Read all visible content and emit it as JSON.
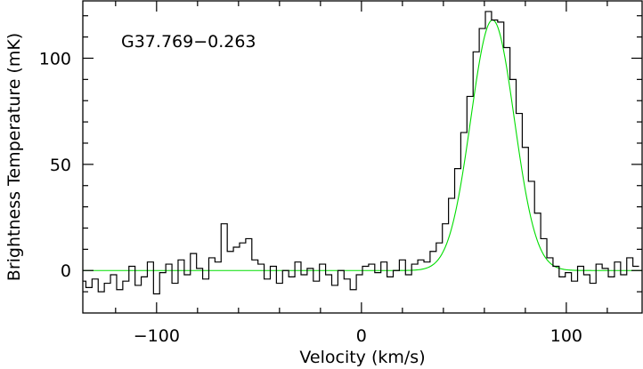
{
  "chart_data": {
    "type": "line",
    "title": "",
    "annotation": "G37.769−0.263",
    "xlabel": "Velocity (km/s)",
    "ylabel": "Brightness Temperature (mK)",
    "xlim": [
      -136,
      137
    ],
    "ylim": [
      -20,
      127
    ],
    "x_ticks": [
      -100,
      0,
      100
    ],
    "x_tick_labels": [
      "−100",
      "0",
      "100"
    ],
    "y_ticks": [
      0,
      50,
      100
    ],
    "y_tick_labels": [
      "0",
      "50",
      "100"
    ],
    "grid": false,
    "colors": {
      "spectrum": "#000000",
      "fit": "#00dd00",
      "axes": "#000000"
    },
    "series": [
      {
        "style": "step",
        "color": "#000000",
        "x": [
          -136,
          -133,
          -130,
          -127,
          -124,
          -121,
          -118,
          -115,
          -112,
          -109,
          -106,
          -103,
          -100,
          -97,
          -94,
          -91,
          -88,
          -85,
          -82,
          -79,
          -76,
          -73,
          -70,
          -67,
          -64,
          -61,
          -58,
          -55,
          -52,
          -49,
          -46,
          -43,
          -40,
          -37,
          -34,
          -31,
          -28,
          -25,
          -22,
          -19,
          -16,
          -13,
          -10,
          -7,
          -4,
          -1,
          2,
          5,
          8,
          11,
          14,
          17,
          20,
          23,
          26,
          29,
          32,
          35,
          38,
          41,
          44,
          47,
          50,
          53,
          56,
          59,
          62,
          65,
          68,
          71,
          74,
          77,
          80,
          83,
          86,
          89,
          92,
          95,
          98,
          101,
          104,
          107,
          110,
          113,
          116,
          119,
          122,
          125,
          128,
          131,
          134
        ],
        "values": [
          -5,
          -8,
          -4,
          -10,
          -6,
          -2,
          -9,
          -5,
          2,
          -7,
          -3,
          4,
          -11,
          -1,
          3,
          -6,
          5,
          -2,
          8,
          1,
          -4,
          6,
          4,
          22,
          9,
          11,
          13,
          15,
          5,
          3,
          -4,
          2,
          -6,
          0,
          -3,
          4,
          -2,
          1,
          -5,
          3,
          -2,
          -7,
          0,
          -4,
          -9,
          -2,
          2,
          3,
          -1,
          4,
          -3,
          0,
          5,
          -2,
          3,
          5,
          4,
          9,
          13,
          22,
          34,
          48,
          65,
          82,
          103,
          114,
          122,
          118,
          117,
          105,
          90,
          74,
          58,
          42,
          27,
          15,
          6,
          2,
          -3,
          -1,
          -5,
          2,
          -2,
          -6,
          3,
          1,
          -3,
          4,
          -2,
          6,
          2
        ]
      },
      {
        "style": "gaussian-fit",
        "color": "#00dd00",
        "amplitude": 118,
        "center": 64,
        "sigma": 10.6,
        "baseline": 0,
        "x_range": [
          -136,
          137
        ]
      }
    ]
  }
}
